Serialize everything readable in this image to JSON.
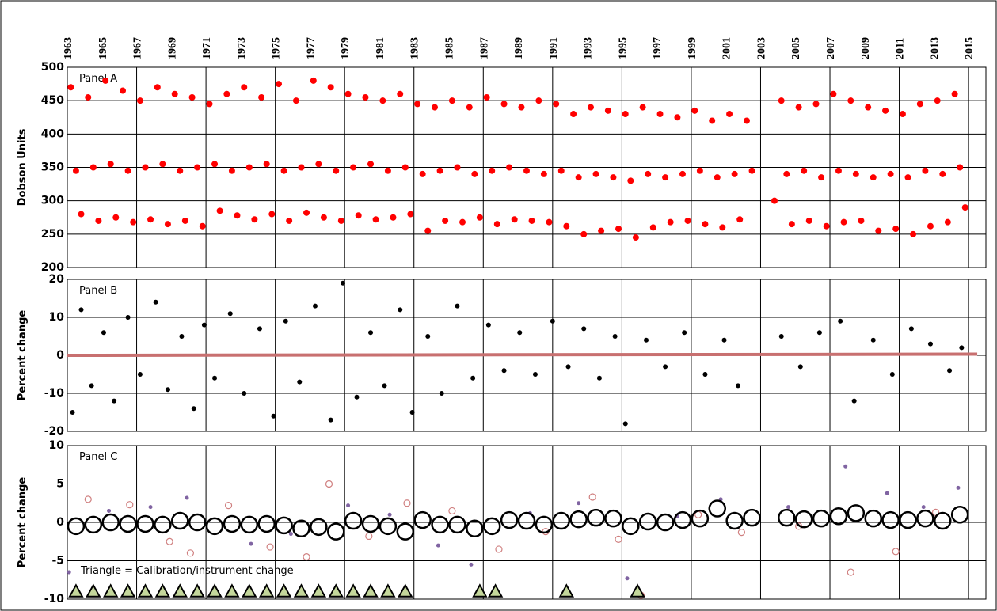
{
  "chart_data": [
    {
      "type": "scatter",
      "title": "Panel A",
      "ylabel": "Dobson Units",
      "xlim": [
        1963,
        2016
      ],
      "xticks": [
        1963,
        1965,
        1967,
        1969,
        1971,
        1973,
        1975,
        1977,
        1979,
        1981,
        1983,
        1985,
        1987,
        1989,
        1991,
        1993,
        1995,
        1997,
        1999,
        2001,
        2003,
        2005,
        2007,
        2009,
        2011,
        2013,
        2015
      ],
      "ylim": [
        200,
        500
      ],
      "yticks": [
        200,
        250,
        300,
        350,
        400,
        450,
        500
      ],
      "grid": true,
      "series": [
        {
          "color": "#ff0000",
          "marker": "dot",
          "size": 4,
          "x": [
            1963.2,
            1963.5,
            1963.8,
            1964.2,
            1964.5,
            1964.8,
            1965.2,
            1965.5,
            1965.8,
            1966.2,
            1966.5,
            1966.8,
            1967.2,
            1967.5,
            1967.8,
            1968.2,
            1968.5,
            1968.8,
            1969.2,
            1969.5,
            1969.8,
            1970.2,
            1970.5,
            1970.8,
            1971.2,
            1971.5,
            1971.8,
            1972.2,
            1972.5,
            1972.8,
            1973.2,
            1973.5,
            1973.8,
            1974.2,
            1974.5,
            1974.8,
            1975.2,
            1975.5,
            1975.8,
            1976.2,
            1976.5,
            1976.8,
            1977.2,
            1977.5,
            1977.8,
            1978.2,
            1978.5,
            1978.8,
            1979.2,
            1979.5,
            1979.8,
            1980.2,
            1980.5,
            1980.8,
            1981.2,
            1981.5,
            1981.8,
            1982.2,
            1982.5,
            1982.8,
            1983.2,
            1983.5,
            1983.8,
            1984.2,
            1984.5,
            1984.8,
            1985.2,
            1985.5,
            1985.8,
            1986.2,
            1986.5,
            1986.8,
            1987.2,
            1987.5,
            1987.8,
            1988.2,
            1988.5,
            1988.8,
            1989.2,
            1989.5,
            1989.8,
            1990.2,
            1990.5,
            1990.8,
            1991.2,
            1991.5,
            1991.8,
            1992.2,
            1992.5,
            1992.8,
            1993.2,
            1993.5,
            1993.8,
            1994.2,
            1994.5,
            1994.8,
            1995.2,
            1995.5,
            1995.8,
            1996.2,
            1996.5,
            1996.8,
            1997.2,
            1997.5,
            1997.8,
            1998.2,
            1998.5,
            1998.8,
            1999.2,
            1999.5,
            1999.8,
            2000.2,
            2000.5,
            2000.8,
            2001.2,
            2001.5,
            2001.8,
            2002.2,
            2002.5,
            2003.8,
            2004.2,
            2004.5,
            2004.8,
            2005.2,
            2005.5,
            2005.8,
            2006.2,
            2006.5,
            2006.8,
            2007.2,
            2007.5,
            2007.8,
            2008.2,
            2008.5,
            2008.8,
            2009.2,
            2009.5,
            2009.8,
            2010.2,
            2010.5,
            2010.8,
            2011.2,
            2011.5,
            2011.8,
            2012.2,
            2012.5,
            2012.8,
            2013.2,
            2013.5,
            2013.8,
            2014.2,
            2014.5,
            2014.8
          ],
          "values": [
            470,
            345,
            280,
            455,
            350,
            270,
            480,
            355,
            275,
            465,
            345,
            268,
            450,
            350,
            272,
            470,
            355,
            265,
            460,
            345,
            270,
            455,
            350,
            262,
            445,
            355,
            285,
            460,
            345,
            278,
            470,
            350,
            272,
            455,
            355,
            280,
            475,
            345,
            270,
            450,
            350,
            282,
            480,
            355,
            275,
            470,
            345,
            270,
            460,
            350,
            278,
            455,
            355,
            272,
            450,
            345,
            275,
            460,
            350,
            280,
            445,
            340,
            255,
            440,
            345,
            270,
            450,
            350,
            268,
            440,
            340,
            275,
            455,
            345,
            265,
            445,
            350,
            272,
            440,
            345,
            270,
            450,
            340,
            268,
            445,
            345,
            262,
            430,
            335,
            250,
            440,
            340,
            255,
            435,
            335,
            258,
            430,
            330,
            245,
            440,
            340,
            260,
            430,
            335,
            268,
            425,
            340,
            270,
            435,
            345,
            265,
            420,
            335,
            260,
            430,
            340,
            272,
            420,
            345,
            300,
            450,
            340,
            265,
            440,
            345,
            270,
            445,
            335,
            262,
            460,
            345,
            268,
            450,
            340,
            270,
            440,
            335,
            255,
            435,
            340,
            258,
            430,
            335,
            250,
            445,
            345,
            262,
            450,
            340,
            268,
            460,
            350,
            290
          ]
        }
      ]
    },
    {
      "type": "scatter",
      "title": "Panel B",
      "ylabel": "Percent change",
      "xlim": [
        1963,
        2016
      ],
      "ylim": [
        -20,
        20
      ],
      "yticks": [
        -20,
        -10,
        0,
        10,
        20
      ],
      "grid": true,
      "series": [
        {
          "color": "#000000",
          "marker": "dot",
          "size": 3,
          "x": [
            1963.3,
            1963.8,
            1964.4,
            1965.1,
            1965.7,
            1966.5,
            1967.2,
            1968.1,
            1968.8,
            1969.6,
            1970.3,
            1970.9,
            1971.5,
            1972.4,
            1973.2,
            1974.1,
            1974.9,
            1975.6,
            1976.4,
            1977.3,
            1978.2,
            1978.9,
            1979.7,
            1980.5,
            1981.3,
            1982.2,
            1982.9,
            1983.8,
            1984.6,
            1985.5,
            1986.4,
            1987.3,
            1988.2,
            1989.1,
            1990.0,
            1991.0,
            1991.9,
            1992.8,
            1993.7,
            1994.6,
            1995.2,
            1996.4,
            1997.5,
            1998.6,
            1999.8,
            2000.9,
            2001.7,
            2004.2,
            2005.3,
            2006.4,
            2007.6,
            2008.4,
            2009.5,
            2010.6,
            2011.7,
            2012.8,
            2013.9,
            2014.6
          ],
          "values": [
            -15,
            12,
            -8,
            6,
            -12,
            10,
            -5,
            14,
            -9,
            5,
            -14,
            8,
            -6,
            11,
            -10,
            7,
            -16,
            9,
            -7,
            13,
            -17,
            19,
            -11,
            6,
            -8,
            12,
            -15,
            5,
            -10,
            13,
            -6,
            8,
            -4,
            6,
            -5,
            9,
            -3,
            7,
            -6,
            5,
            -18,
            4,
            -3,
            6,
            -5,
            4,
            -8,
            5,
            -3,
            6,
            9,
            -12,
            4,
            -5,
            7,
            3,
            -4,
            2
          ]
        },
        {
          "color": "#c87070",
          "marker": "line",
          "size": 4,
          "x": [
            1963,
            2015.5
          ],
          "values": [
            0,
            0.3
          ]
        }
      ]
    },
    {
      "type": "scatter",
      "title": "Panel C",
      "ylabel": "Percent change",
      "annotation": "Triangle = Calibration/instrument change",
      "xlim": [
        1963,
        2016
      ],
      "ylim": [
        -10,
        10
      ],
      "yticks": [
        -10,
        -5,
        0,
        5,
        10
      ],
      "grid": true,
      "series": [
        {
          "color": "#d08080",
          "marker": "ring",
          "size": 4,
          "x": [
            1964.2,
            1966.6,
            1968.9,
            1970.1,
            1972.3,
            1974.7,
            1976.8,
            1978.1,
            1980.4,
            1982.6,
            1985.2,
            1987.9,
            1990.6,
            1993.3,
            1994.8,
            1996.1,
            1999.4,
            2001.9,
            2005.2,
            2008.2,
            2010.8,
            2013.1
          ],
          "values": [
            3,
            2.3,
            -2.5,
            -4,
            2.2,
            -3.2,
            -4.5,
            5,
            -1.8,
            2.5,
            1.5,
            -3.5,
            -1.2,
            3.3,
            -2.2,
            -9.5,
            1,
            -1.3,
            -0.5,
            -6.5,
            -3.8,
            1.3
          ]
        },
        {
          "color": "#8064a2",
          "marker": "dot",
          "size": 2.5,
          "x": [
            1963.1,
            1965.4,
            1967.8,
            1969.9,
            1973.6,
            1975.9,
            1979.2,
            1981.6,
            1984.4,
            1986.3,
            1989.7,
            1992.5,
            1995.3,
            1998.2,
            2000.7,
            2004.6,
            2007.9,
            2010.3,
            2012.4,
            2014.4
          ],
          "values": [
            -6.5,
            1.5,
            2,
            3.2,
            -2.8,
            -1.5,
            2.2,
            1,
            -3,
            -5.5,
            1.2,
            2.5,
            -7.3,
            0.8,
            3,
            2,
            7.3,
            3.8,
            2,
            4.5
          ]
        },
        {
          "color": "#000000",
          "marker": "circle",
          "size": 10,
          "x": [
            1963.5,
            1964.5,
            1965.5,
            1966.5,
            1967.5,
            1968.5,
            1969.5,
            1970.5,
            1971.5,
            1972.5,
            1973.5,
            1974.5,
            1975.5,
            1976.5,
            1977.5,
            1978.5,
            1979.5,
            1980.5,
            1981.5,
            1982.5,
            1983.5,
            1984.5,
            1985.5,
            1986.5,
            1987.5,
            1988.5,
            1989.5,
            1990.5,
            1991.5,
            1992.5,
            1993.5,
            1994.5,
            1995.5,
            1996.5,
            1997.5,
            1998.5,
            1999.5,
            2000.5,
            2001.5,
            2002.5,
            2004.5,
            2005.5,
            2006.5,
            2007.5,
            2008.5,
            2009.5,
            2010.5,
            2011.5,
            2012.5,
            2013.5,
            2014.5
          ],
          "values": [
            -0.5,
            -0.3,
            0,
            -0.2,
            -0.2,
            -0.3,
            0.2,
            0,
            -0.5,
            -0.2,
            -0.3,
            -0.2,
            -0.4,
            -0.8,
            -0.6,
            -1.2,
            0.2,
            -0.2,
            -0.5,
            -1.2,
            0.3,
            -0.3,
            -0.3,
            -0.8,
            -0.5,
            0.3,
            0.2,
            -0.3,
            0.2,
            0.4,
            0.6,
            0.5,
            -0.5,
            0.1,
            0,
            0.3,
            0.5,
            1.8,
            0.2,
            0.6,
            0.6,
            0.4,
            0.5,
            0.8,
            1.2,
            0.5,
            0.3,
            0.3,
            0.5,
            0.2,
            1.0
          ]
        },
        {
          "color": "#c4d79b",
          "marker": "triangle",
          "size": 8,
          "x": [
            1963.5,
            1964.5,
            1965.5,
            1966.5,
            1967.5,
            1968.5,
            1969.5,
            1970.5,
            1971.5,
            1972.5,
            1973.5,
            1974.5,
            1975.5,
            1976.5,
            1977.5,
            1978.5,
            1979.5,
            1980.5,
            1981.5,
            1982.5,
            1986.8,
            1987.7,
            1991.8,
            1995.9
          ],
          "values": [
            -9,
            -9,
            -9,
            -9,
            -9,
            -9,
            -9,
            -9,
            -9,
            -9,
            -9,
            -9,
            -9,
            -9,
            -9,
            -9,
            -9,
            -9,
            -9,
            -9,
            -9,
            -9,
            -9,
            -9
          ]
        }
      ]
    }
  ]
}
